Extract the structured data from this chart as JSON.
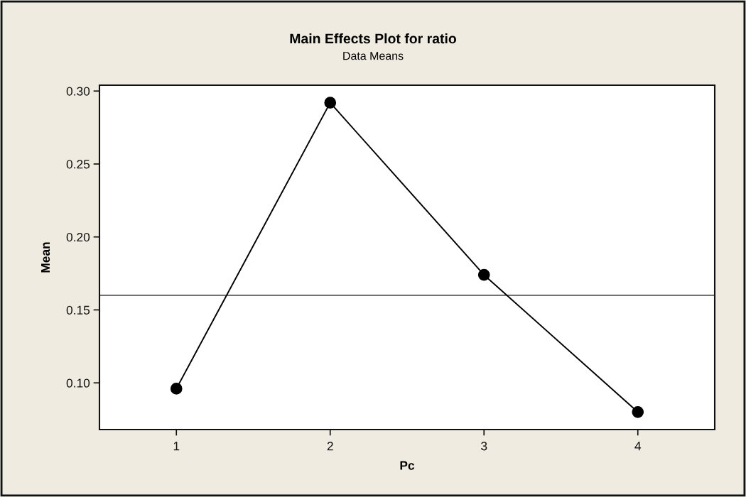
{
  "chart_data": {
    "type": "line",
    "title": "Main Effects Plot for ratio",
    "subtitle": "Data Means",
    "xlabel": "Pc",
    "ylabel": "Mean",
    "categories": [
      "1",
      "2",
      "3",
      "4"
    ],
    "series": [
      {
        "color": "#000000",
        "values": [
          0.096,
          0.292,
          0.174,
          0.08
        ]
      }
    ],
    "marker": "circle",
    "line_style": "solid",
    "ylim": [
      0.068,
      0.304
    ],
    "yticks": [
      {
        "value": 0.1,
        "label": "0.10"
      },
      {
        "value": 0.15,
        "label": "0.15"
      },
      {
        "value": 0.2,
        "label": "0.20"
      },
      {
        "value": 0.25,
        "label": "0.25"
      },
      {
        "value": 0.3,
        "label": "0.30"
      }
    ],
    "ref_lines": [
      {
        "axis": "y",
        "value": 0.16,
        "color": "#555555"
      }
    ]
  }
}
